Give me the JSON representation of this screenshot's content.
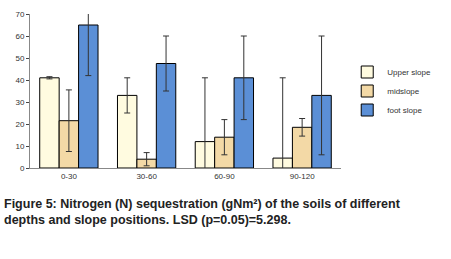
{
  "chart_data": {
    "type": "bar",
    "caption": "Figure 5: Nitrogen (N) sequestration (gNm²) of the soils of different depths and slope positions. LSD (p=0.05)=5.298.",
    "categories": [
      "0-30",
      "30-60",
      "60-90",
      "90-120"
    ],
    "series": [
      {
        "name": "Upper slope",
        "color": "#fffbe0",
        "values": [
          41,
          33,
          12,
          4.5
        ],
        "errors": [
          0.5,
          8,
          29,
          36.5
        ]
      },
      {
        "name": "midslope",
        "color": "#f3d9a6",
        "values": [
          21.5,
          4,
          14,
          18.5
        ],
        "errors": [
          14,
          3,
          8,
          4
        ]
      },
      {
        "name": "foot slope",
        "color": "#5b8fd6",
        "values": [
          65,
          47.5,
          41,
          33
        ],
        "errors": [
          23,
          12.5,
          19,
          27
        ]
      }
    ],
    "ylim": [
      0,
      70
    ],
    "yticks": [
      0,
      10,
      20,
      30,
      40,
      50,
      60,
      70
    ],
    "grid": false,
    "legend": "right"
  }
}
